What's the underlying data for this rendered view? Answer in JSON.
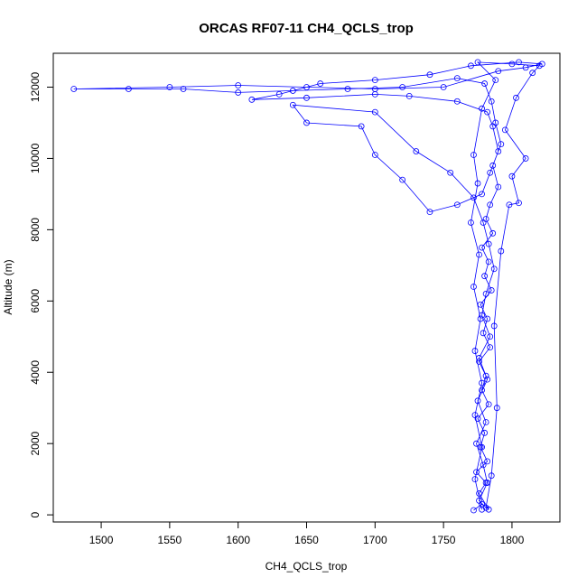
{
  "chart_data": {
    "type": "line",
    "title": "ORCAS RF07-11 CH4_QCLS_trop",
    "xlabel": "CH4_QCLS_trop",
    "ylabel": "Altitude (m)",
    "xlim": [
      1465,
      1835
    ],
    "ylim": [
      -200,
      12950
    ],
    "xticks": [
      1500,
      1550,
      1600,
      1650,
      1700,
      1750,
      1800
    ],
    "yticks": [
      0,
      2000,
      4000,
      6000,
      8000,
      10000,
      12000
    ],
    "line_color": "#0000ff",
    "marker": "open-circle",
    "grid": false,
    "legend": false,
    "series": [
      {
        "values": [
          {
            "x": 1772,
            "y": 130
          },
          {
            "x": 1778,
            "y": 300
          },
          {
            "x": 1783,
            "y": 150
          },
          {
            "x": 1776,
            "y": 600
          },
          {
            "x": 1781,
            "y": 900
          },
          {
            "x": 1774,
            "y": 1200
          },
          {
            "x": 1782,
            "y": 1500
          },
          {
            "x": 1777,
            "y": 1900
          },
          {
            "x": 1780,
            "y": 2300
          },
          {
            "x": 1775,
            "y": 2700
          },
          {
            "x": 1783,
            "y": 3100
          },
          {
            "x": 1778,
            "y": 3500
          },
          {
            "x": 1781,
            "y": 3900
          },
          {
            "x": 1776,
            "y": 4300
          },
          {
            "x": 1784,
            "y": 4700
          },
          {
            "x": 1779,
            "y": 5100
          },
          {
            "x": 1782,
            "y": 5500
          },
          {
            "x": 1777,
            "y": 5900
          },
          {
            "x": 1785,
            "y": 6300
          },
          {
            "x": 1780,
            "y": 6700
          },
          {
            "x": 1783,
            "y": 7100
          },
          {
            "x": 1778,
            "y": 7500
          },
          {
            "x": 1786,
            "y": 7900
          },
          {
            "x": 1781,
            "y": 8300
          },
          {
            "x": 1784,
            "y": 8700
          },
          {
            "x": 1790,
            "y": 9200
          },
          {
            "x": 1786,
            "y": 9800
          },
          {
            "x": 1792,
            "y": 10400
          },
          {
            "x": 1788,
            "y": 11000
          },
          {
            "x": 1785,
            "y": 11600
          },
          {
            "x": 1780,
            "y": 12100
          },
          {
            "x": 1760,
            "y": 12250
          },
          {
            "x": 1720,
            "y": 12000
          },
          {
            "x": 1680,
            "y": 11950
          },
          {
            "x": 1640,
            "y": 11900
          },
          {
            "x": 1600,
            "y": 11850
          },
          {
            "x": 1560,
            "y": 11950
          },
          {
            "x": 1520,
            "y": 11950
          },
          {
            "x": 1480,
            "y": 11950
          },
          {
            "x": 1550,
            "y": 12000
          },
          {
            "x": 1600,
            "y": 12050
          },
          {
            "x": 1650,
            "y": 12000
          },
          {
            "x": 1700,
            "y": 11950
          },
          {
            "x": 1750,
            "y": 12000
          },
          {
            "x": 1790,
            "y": 12450
          },
          {
            "x": 1810,
            "y": 12550
          },
          {
            "x": 1822,
            "y": 12650
          },
          {
            "x": 1805,
            "y": 12700
          },
          {
            "x": 1770,
            "y": 12600
          },
          {
            "x": 1740,
            "y": 12350
          },
          {
            "x": 1700,
            "y": 12200
          },
          {
            "x": 1660,
            "y": 12100
          },
          {
            "x": 1630,
            "y": 11800
          },
          {
            "x": 1610,
            "y": 11650
          },
          {
            "x": 1650,
            "y": 11700
          },
          {
            "x": 1700,
            "y": 11800
          },
          {
            "x": 1725,
            "y": 11750
          },
          {
            "x": 1760,
            "y": 11600
          },
          {
            "x": 1782,
            "y": 11300
          },
          {
            "x": 1786,
            "y": 10900
          },
          {
            "x": 1790,
            "y": 10200
          },
          {
            "x": 1784,
            "y": 9600
          },
          {
            "x": 1778,
            "y": 9000
          },
          {
            "x": 1760,
            "y": 8700
          },
          {
            "x": 1740,
            "y": 8500
          },
          {
            "x": 1720,
            "y": 9400
          },
          {
            "x": 1700,
            "y": 10100
          },
          {
            "x": 1690,
            "y": 10900
          },
          {
            "x": 1650,
            "y": 11000
          },
          {
            "x": 1640,
            "y": 11500
          },
          {
            "x": 1700,
            "y": 11300
          },
          {
            "x": 1730,
            "y": 10200
          },
          {
            "x": 1755,
            "y": 9600
          },
          {
            "x": 1772,
            "y": 8900
          },
          {
            "x": 1779,
            "y": 8200
          },
          {
            "x": 1783,
            "y": 7600
          },
          {
            "x": 1787,
            "y": 6900
          },
          {
            "x": 1781,
            "y": 6200
          },
          {
            "x": 1778,
            "y": 5600
          },
          {
            "x": 1784,
            "y": 5000
          },
          {
            "x": 1776,
            "y": 4400
          },
          {
            "x": 1782,
            "y": 3800
          },
          {
            "x": 1775,
            "y": 3200
          },
          {
            "x": 1781,
            "y": 2600
          },
          {
            "x": 1774,
            "y": 2000
          },
          {
            "x": 1779,
            "y": 1400
          },
          {
            "x": 1782,
            "y": 900
          },
          {
            "x": 1776,
            "y": 400
          },
          {
            "x": 1781,
            "y": 200
          },
          {
            "x": 1785,
            "y": 1100
          },
          {
            "x": 1789,
            "y": 3000
          },
          {
            "x": 1787,
            "y": 5300
          },
          {
            "x": 1792,
            "y": 7400
          },
          {
            "x": 1798,
            "y": 8700
          },
          {
            "x": 1805,
            "y": 8750
          },
          {
            "x": 1800,
            "y": 9500
          },
          {
            "x": 1810,
            "y": 10000
          },
          {
            "x": 1795,
            "y": 10800
          },
          {
            "x": 1803,
            "y": 11700
          },
          {
            "x": 1815,
            "y": 12400
          },
          {
            "x": 1820,
            "y": 12600
          },
          {
            "x": 1800,
            "y": 12650
          },
          {
            "x": 1775,
            "y": 12700
          },
          {
            "x": 1788,
            "y": 12200
          },
          {
            "x": 1778,
            "y": 11400
          },
          {
            "x": 1772,
            "y": 10100
          },
          {
            "x": 1775,
            "y": 9300
          },
          {
            "x": 1770,
            "y": 8200
          },
          {
            "x": 1776,
            "y": 7300
          },
          {
            "x": 1772,
            "y": 6400
          },
          {
            "x": 1777,
            "y": 5500
          },
          {
            "x": 1773,
            "y": 4600
          },
          {
            "x": 1778,
            "y": 3700
          },
          {
            "x": 1773,
            "y": 2800
          },
          {
            "x": 1778,
            "y": 1900
          },
          {
            "x": 1773,
            "y": 1000
          },
          {
            "x": 1778,
            "y": 150
          }
        ]
      }
    ]
  }
}
